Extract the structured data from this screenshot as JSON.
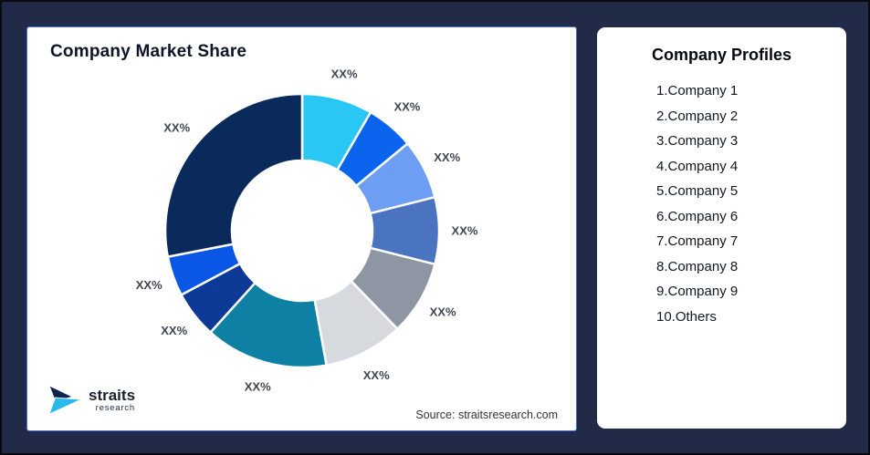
{
  "app": {
    "background_color": "#212B47",
    "outer_border_color": "#0b0b0e"
  },
  "chart_card": {
    "title": "Company Market Share",
    "source": "Source: straitsresearch.com",
    "border_color": "#4a6fd0"
  },
  "logo": {
    "text": "straits",
    "subtext": "research",
    "mark_top_color": "#12234f",
    "mark_bottom_color": "#29b9ea"
  },
  "profiles_card": {
    "title": "Company Profiles",
    "items": [
      "1.Company 1",
      "2.Company 2",
      "3.Company 3",
      "4.Company 4",
      "5.Company 5",
      "6.Company 6",
      "7.Company 7",
      "8.Company 8",
      "9.Company 9",
      "10.Others"
    ]
  },
  "chart_data": {
    "type": "pie",
    "subtype": "donut",
    "title": "Company Market Share",
    "source": "Source: straitsresearch.com",
    "start_angle_deg": 0,
    "direction": "clockwise",
    "inner_radius_ratio": 0.51,
    "gap_color": "#ffffff",
    "label_color": "#40454f",
    "note": "segment values masked as XX% in the figure; percent_est read from arc angles",
    "segments": [
      {
        "label": "XX%",
        "angle_deg": 30.0,
        "percent_est": 8.3,
        "color": "#2AC6F4"
      },
      {
        "label": "XX%",
        "angle_deg": 20.4,
        "percent_est": 5.7,
        "color": "#0A64EE"
      },
      {
        "label": "XX%",
        "angle_deg": 25.4,
        "percent_est": 7.1,
        "color": "#6D9EF3"
      },
      {
        "label": "XX%",
        "angle_deg": 28.4,
        "percent_est": 7.9,
        "color": "#4A74C0"
      },
      {
        "label": "XX%",
        "angle_deg": 31.7,
        "percent_est": 8.8,
        "color": "#8E96A3"
      },
      {
        "label": "XX%",
        "angle_deg": 33.9,
        "percent_est": 9.4,
        "color": "#D6D9DE"
      },
      {
        "label": "XX%",
        "angle_deg": 52.2,
        "percent_est": 14.5,
        "color": "#0D80A4"
      },
      {
        "label": "XX%",
        "angle_deg": 20.0,
        "percent_est": 5.6,
        "color": "#0D3A96"
      },
      {
        "label": "XX%",
        "angle_deg": 17.0,
        "percent_est": 4.7,
        "color": "#0B57E5"
      },
      {
        "label": "XX%",
        "angle_deg": 101.0,
        "percent_est": 28.0,
        "color": "#0B2A5C"
      }
    ]
  }
}
